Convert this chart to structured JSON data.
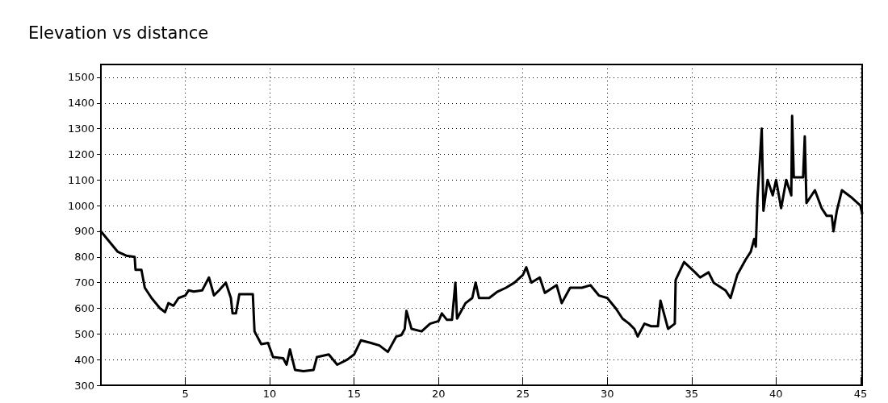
{
  "chart_data": {
    "type": "line",
    "title": "Elevation vs distance",
    "x": [
      0,
      0.5,
      1,
      1.5,
      2,
      2.05,
      2.4,
      2.6,
      3,
      3.5,
      3.8,
      4,
      4.3,
      4.6,
      5,
      5.2,
      5.5,
      6,
      6.4,
      6.7,
      7,
      7.4,
      7.7,
      7.8,
      8,
      8.2,
      9,
      9.1,
      9.5,
      9.9,
      10.2,
      10.8,
      11,
      11.2,
      11.5,
      12,
      12.6,
      12.8,
      13.5,
      14,
      14.6,
      15,
      15.4,
      16,
      16.5,
      17,
      17.5,
      17.8,
      18,
      18.1,
      18.4,
      19,
      19.5,
      20,
      20.2,
      20.5,
      20.8,
      21,
      21.1,
      21.6,
      22,
      22.2,
      22.4,
      23,
      23.5,
      24,
      24.5,
      25,
      25.2,
      25.5,
      26,
      26.3,
      27,
      27.3,
      27.8,
      28.5,
      29,
      29.5,
      30,
      30.5,
      30.9,
      31.3,
      31.6,
      31.8,
      32.2,
      32.6,
      33,
      33.15,
      33.6,
      34,
      34.05,
      34.55,
      35.2,
      35.5,
      36,
      36.3,
      37,
      37.3,
      37.7,
      38.2,
      38.5,
      38.7,
      38.8,
      38.9,
      39.15,
      39.25,
      39.5,
      39.8,
      40,
      40.3,
      40.6,
      40.9,
      40.95,
      41.05,
      41.6,
      41.7,
      41.8,
      42.3,
      42.7,
      43,
      43.3,
      43.4,
      43.6,
      43.9,
      44.5,
      45,
      45.1
    ],
    "values": [
      900,
      860,
      820,
      805,
      800,
      750,
      750,
      680,
      640,
      600,
      585,
      620,
      610,
      640,
      650,
      670,
      665,
      670,
      720,
      650,
      670,
      700,
      640,
      580,
      580,
      655,
      655,
      510,
      460,
      465,
      410,
      405,
      380,
      440,
      360,
      355,
      360,
      410,
      420,
      380,
      400,
      420,
      475,
      465,
      455,
      430,
      490,
      495,
      520,
      590,
      520,
      510,
      540,
      550,
      580,
      555,
      555,
      700,
      560,
      620,
      640,
      700,
      640,
      640,
      665,
      680,
      700,
      730,
      760,
      700,
      720,
      660,
      690,
      620,
      680,
      680,
      690,
      650,
      640,
      600,
      560,
      540,
      520,
      490,
      540,
      530,
      530,
      630,
      520,
      540,
      710,
      780,
      740,
      720,
      740,
      700,
      670,
      640,
      730,
      790,
      820,
      870,
      840,
      1030,
      1300,
      980,
      1100,
      1040,
      1100,
      990,
      1100,
      1040,
      1350,
      1110,
      1110,
      1270,
      1010,
      1060,
      990,
      960,
      960,
      900,
      980,
      1060,
      1030,
      1000,
      970
    ],
    "color": "#000000",
    "line_style": "solid",
    "marker": "none",
    "xlim": [
      0,
      45.1
    ],
    "xticks": [
      5,
      10,
      15,
      20,
      25,
      30,
      35,
      40,
      45
    ],
    "ylim": [
      300,
      1550
    ],
    "yticks": [
      300,
      400,
      500,
      600,
      700,
      800,
      900,
      1000,
      1100,
      1200,
      1300,
      1400,
      1500
    ],
    "grid": true
  }
}
